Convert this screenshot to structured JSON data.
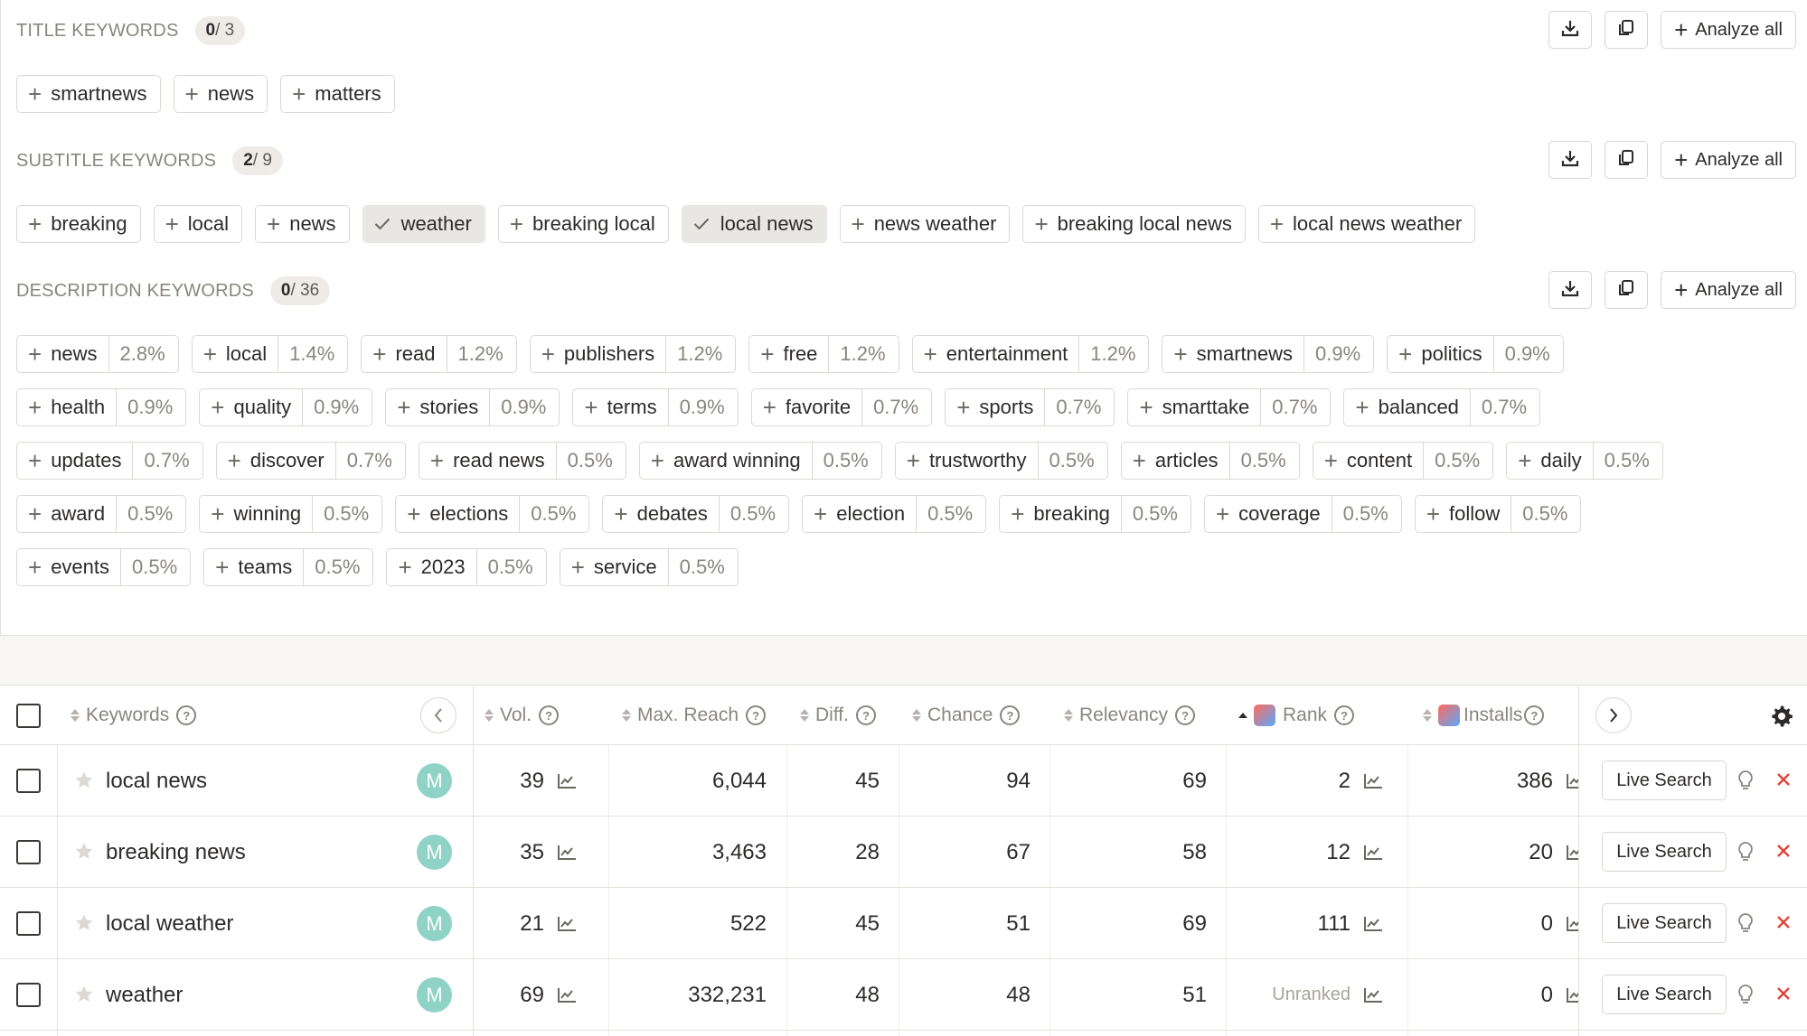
{
  "colors": {
    "accent_active_chip": "#e9e7e4",
    "avatar": "#8fd3c6",
    "delete": "#e0443a"
  },
  "title_keywords": {
    "label": "TITLE KEYWORDS",
    "count_selected": "0",
    "count_total": " / 3",
    "chips": [
      "smartnews",
      "news",
      "matters"
    ]
  },
  "subtitle_keywords": {
    "label": "SUBTITLE KEYWORDS",
    "count_selected": "2",
    "count_total": " / 9",
    "chips": [
      {
        "label": "breaking",
        "active": false
      },
      {
        "label": "local",
        "active": false
      },
      {
        "label": "news",
        "active": false
      },
      {
        "label": "weather",
        "active": true
      },
      {
        "label": "breaking local",
        "active": false
      },
      {
        "label": "local news",
        "active": true
      },
      {
        "label": "news weather",
        "active": false
      },
      {
        "label": "breaking local news",
        "active": false
      },
      {
        "label": "local news weather",
        "active": false
      }
    ]
  },
  "description_keywords": {
    "label": "DESCRIPTION KEYWORDS",
    "count_selected": "0",
    "count_total": " / 36",
    "rows": [
      [
        [
          "news",
          "2.8%"
        ],
        [
          "local",
          "1.4%"
        ],
        [
          "read",
          "1.2%"
        ],
        [
          "publishers",
          "1.2%"
        ],
        [
          "free",
          "1.2%"
        ],
        [
          "entertainment",
          "1.2%"
        ],
        [
          "smartnews",
          "0.9%"
        ],
        [
          "politics",
          "0.9%"
        ]
      ],
      [
        [
          "health",
          "0.9%"
        ],
        [
          "quality",
          "0.9%"
        ],
        [
          "stories",
          "0.9%"
        ],
        [
          "terms",
          "0.9%"
        ],
        [
          "favorite",
          "0.7%"
        ],
        [
          "sports",
          "0.7%"
        ],
        [
          "smarttake",
          "0.7%"
        ],
        [
          "balanced",
          "0.7%"
        ]
      ],
      [
        [
          "updates",
          "0.7%"
        ],
        [
          "discover",
          "0.7%"
        ],
        [
          "read news",
          "0.5%"
        ],
        [
          "award winning",
          "0.5%"
        ],
        [
          "trustworthy",
          "0.5%"
        ],
        [
          "articles",
          "0.5%"
        ],
        [
          "content",
          "0.5%"
        ],
        [
          "daily",
          "0.5%"
        ]
      ],
      [
        [
          "award",
          "0.5%"
        ],
        [
          "winning",
          "0.5%"
        ],
        [
          "elections",
          "0.5%"
        ],
        [
          "debates",
          "0.5%"
        ],
        [
          "election",
          "0.5%"
        ],
        [
          "breaking",
          "0.5%"
        ],
        [
          "coverage",
          "0.5%"
        ],
        [
          "follow",
          "0.5%"
        ]
      ],
      [
        [
          "events",
          "0.5%"
        ],
        [
          "teams",
          "0.5%"
        ],
        [
          "2023",
          "0.5%"
        ],
        [
          "service",
          "0.5%"
        ]
      ]
    ]
  },
  "actions": {
    "analyze_all": "Analyze all",
    "download_icon": "download-icon",
    "copy_icon": "copy-icon"
  },
  "table": {
    "headers": {
      "keywords": "Keywords",
      "vol": "Vol.",
      "max_reach": "Max. Reach",
      "diff": "Diff.",
      "chance": "Chance",
      "relevancy": "Relevancy",
      "rank": "Rank",
      "installs": "Installs"
    },
    "live_search": "Live Search",
    "rows": [
      {
        "keyword": "local news",
        "avatar": "M",
        "vol": "39",
        "max_reach": "6,044",
        "diff": "45",
        "chance": "94",
        "relevancy": "69",
        "rank": "2",
        "installs": "386"
      },
      {
        "keyword": "breaking news",
        "avatar": "M",
        "vol": "35",
        "max_reach": "3,463",
        "diff": "28",
        "chance": "67",
        "relevancy": "58",
        "rank": "12",
        "installs": "20"
      },
      {
        "keyword": "local weather",
        "avatar": "M",
        "vol": "21",
        "max_reach": "522",
        "diff": "45",
        "chance": "51",
        "relevancy": "69",
        "rank": "111",
        "installs": "0"
      },
      {
        "keyword": "weather",
        "avatar": "M",
        "vol": "69",
        "max_reach": "332,231",
        "diff": "48",
        "chance": "48",
        "relevancy": "51",
        "rank": "Unranked",
        "installs": "0"
      }
    ]
  }
}
